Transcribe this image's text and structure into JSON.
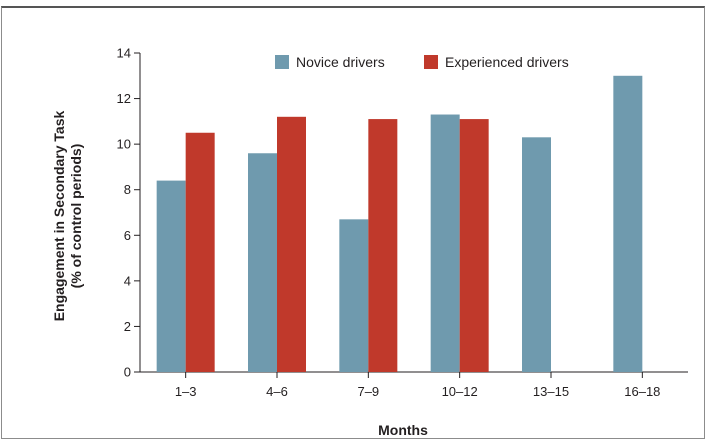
{
  "chart_data": {
    "type": "bar",
    "categories": [
      "1–3",
      "4–6",
      "7–9",
      "10–12",
      "13–15",
      "16–18"
    ],
    "series": [
      {
        "name": "Novice drivers",
        "color": "#6f9aae",
        "values": [
          8.4,
          9.6,
          6.7,
          11.3,
          10.3,
          13.0
        ]
      },
      {
        "name": "Experienced drivers",
        "color": "#c0392b",
        "values": [
          10.5,
          11.2,
          11.1,
          11.1,
          null,
          null
        ]
      }
    ],
    "xlabel": "Months",
    "ylabel": [
      "Engagement in Secondary Task",
      "(% of control periods)"
    ],
    "ylim": [
      0,
      14
    ],
    "yticks": [
      "0",
      "2",
      "4",
      "6",
      "8",
      "10",
      "12",
      "14"
    ],
    "grid": false,
    "legend_position": "top"
  }
}
